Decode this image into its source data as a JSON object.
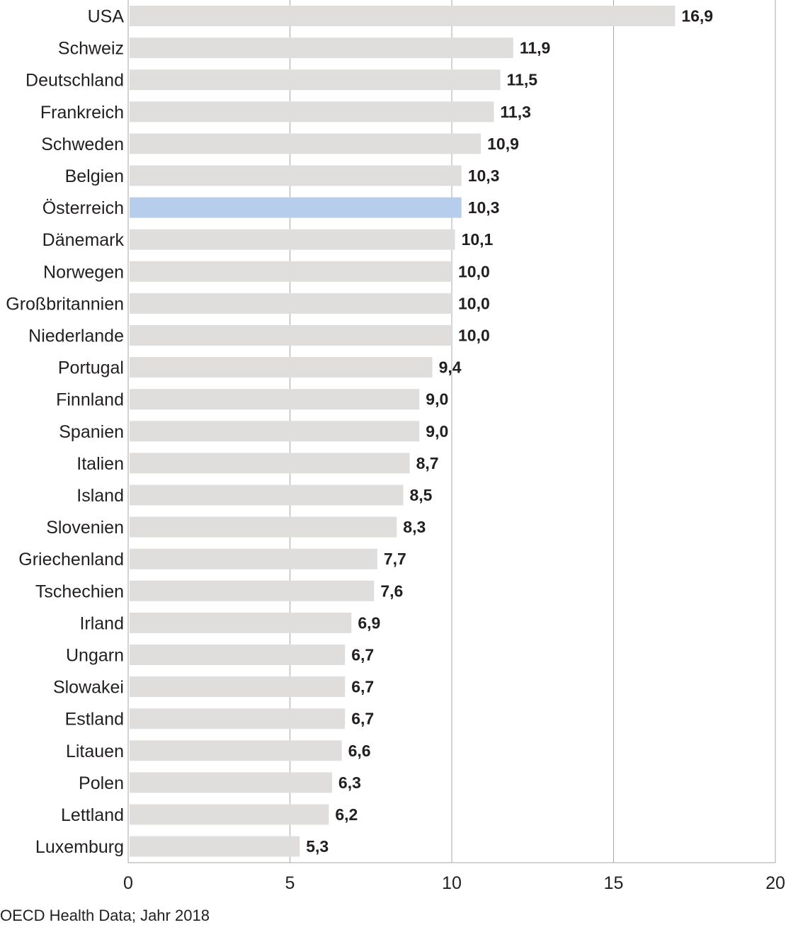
{
  "chart_data": {
    "type": "bar",
    "orientation": "horizontal",
    "categories": [
      "USA",
      "Schweiz",
      "Deutschland",
      "Frankreich",
      "Schweden",
      "Belgien",
      "Österreich",
      "Dänemark",
      "Norwegen",
      "Großbritannien",
      "Niederlande",
      "Portugal",
      "Finnland",
      "Spanien",
      "Italien",
      "Island",
      "Slovenien",
      "Griechenland",
      "Tschechien",
      "Irland",
      "Ungarn",
      "Slowakei",
      "Estland",
      "Litauen",
      "Polen",
      "Lettland",
      "Luxemburg"
    ],
    "values": [
      16.9,
      11.9,
      11.5,
      11.3,
      10.9,
      10.3,
      10.3,
      10.1,
      10.0,
      10.0,
      10.0,
      9.4,
      9.0,
      9.0,
      8.7,
      8.5,
      8.3,
      7.7,
      7.6,
      6.9,
      6.7,
      6.7,
      6.7,
      6.6,
      6.3,
      6.2,
      5.3
    ],
    "value_labels": [
      "16,9",
      "11,9",
      "11,5",
      "11,3",
      "10,9",
      "10,3",
      "10,3",
      "10,1",
      "10,0",
      "10,0",
      "10,0",
      "9,4",
      "9,0",
      "9,0",
      "8,7",
      "8,5",
      "8,3",
      "7,7",
      "7,6",
      "6,9",
      "6,7",
      "6,7",
      "6,7",
      "6,6",
      "6,3",
      "6,2",
      "5,3"
    ],
    "highlight": "Österreich",
    "xlim": [
      0,
      20
    ],
    "xticks": [
      0,
      5,
      10,
      15,
      20
    ],
    "xtick_labels": [
      "0",
      "5",
      "10",
      "15",
      "20"
    ],
    "grid": "vertical",
    "colors": {
      "bar": "#e0dedd",
      "highlight": "#b6cdeb",
      "grid": "#a7a7a7",
      "text": "#231f20"
    }
  },
  "source": "OECD Health Data; Jahr 2018"
}
